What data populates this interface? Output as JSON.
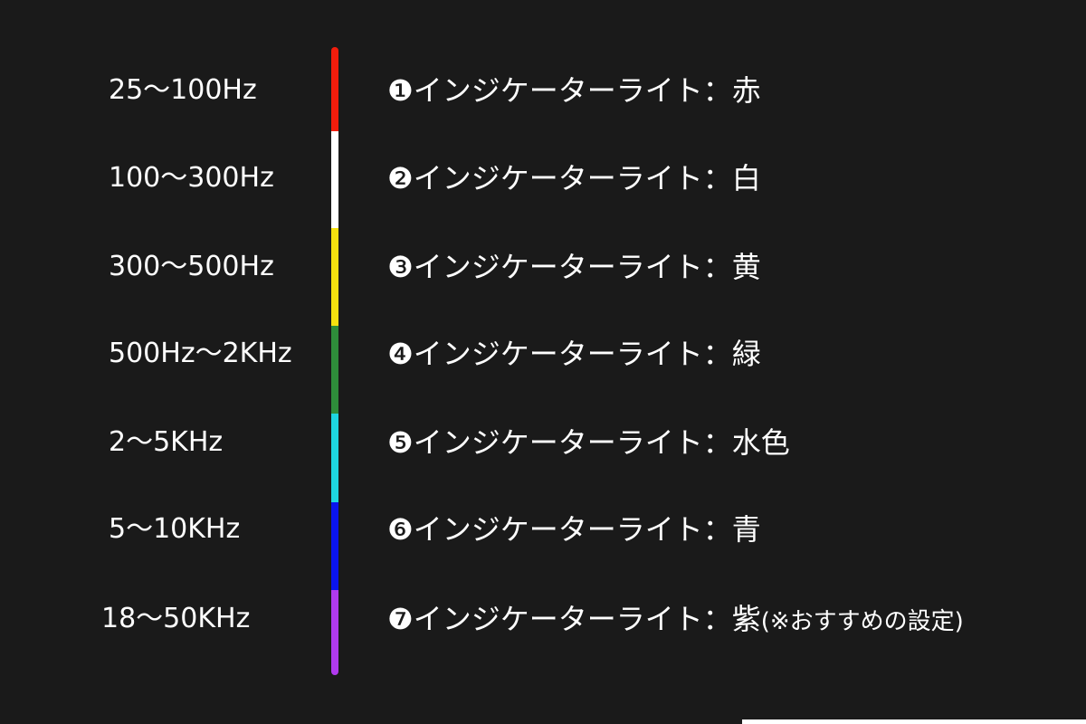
{
  "rows": [
    {
      "range": "25〜100Hz",
      "label": "❶インジケーターライト：赤",
      "note": "",
      "color": "#f21d0c"
    },
    {
      "range": "100〜300Hz",
      "label": "❷インジケーターライト：白",
      "note": "",
      "color": "#ffffff"
    },
    {
      "range": "300〜500Hz",
      "label": "❸インジケーターライト：黄",
      "note": "",
      "color": "#f5e10f"
    },
    {
      "range": "500Hz〜2KHz",
      "label": "❹インジケーターライト：緑",
      "note": "",
      "color": "#2e8d3a"
    },
    {
      "range": "2〜5KHz",
      "label": "❺インジケーターライト：水色",
      "note": "",
      "color": "#1ed6e0"
    },
    {
      "range": "5〜10KHz",
      "label": "❻インジケーターライト：青",
      "note": "",
      "color": "#0a14ee"
    },
    {
      "range": "18〜50KHz",
      "label": "❼インジケーターライト：紫",
      "note": "(※おすすめの設定)",
      "color": "#b13aee"
    }
  ]
}
